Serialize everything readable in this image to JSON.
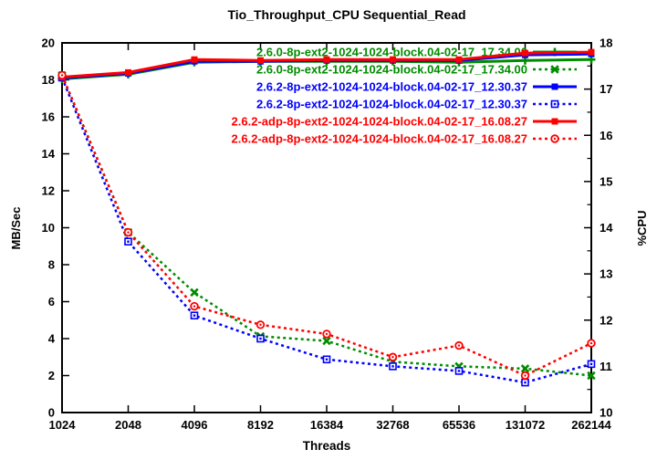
{
  "chart_data": {
    "type": "line",
    "title": "Tio_Throughput_CPU Sequential_Read",
    "xlabel": "Threads",
    "ylabel_left": "MB/Sec",
    "ylabel_right": "%CPU",
    "x_scale": "log2",
    "grid": false,
    "legend_position": "top-right-inside",
    "x_tick_labels": [
      "1024",
      "2048",
      "4096",
      "8192",
      "16384",
      "32768",
      "65536",
      "131072",
      "262144"
    ],
    "left_axis": {
      "min": 0,
      "max": 20,
      "tick_step": 2,
      "tick_labels": [
        "0",
        "2",
        "4",
        "6",
        "8",
        "10",
        "12",
        "14",
        "16",
        "18",
        "20"
      ]
    },
    "right_axis": {
      "min": 10,
      "max": 18,
      "tick_step": 1,
      "minor_tick_step": 0.5,
      "tick_labels": [
        "10",
        "11",
        "12",
        "13",
        "14",
        "15",
        "16",
        "17",
        "18"
      ]
    },
    "series": [
      {
        "label": "2.6.0-8p-ext2-1024-1024-block.04-02-17_17.34.00",
        "axis": "left",
        "unit": "MB/Sec",
        "color": "#008c00",
        "line": "solid",
        "marker": "plus",
        "values": [
          18.05,
          18.3,
          18.95,
          19.0,
          19.0,
          19.0,
          18.95,
          19.05,
          19.1
        ]
      },
      {
        "label": "2.6.0-8p-ext2-1024-1024-block.04-02-17_17.34.00",
        "axis": "right",
        "unit": "%CPU",
        "color": "#008c00",
        "line": "dotted",
        "marker": "x",
        "values": [
          17.3,
          13.9,
          12.6,
          11.65,
          11.55,
          11.1,
          11.0,
          10.95,
          10.8
        ]
      },
      {
        "label": "2.6.2-8p-ext2-1024-1024-block.04-02-17_12.30.37",
        "axis": "left",
        "unit": "MB/Sec",
        "color": "#0000ff",
        "line": "solid",
        "marker": "filled-square",
        "values": [
          18.1,
          18.35,
          19.0,
          19.0,
          19.05,
          19.05,
          19.05,
          19.35,
          19.4
        ]
      },
      {
        "label": "2.6.2-8p-ext2-1024-1024-block.04-02-17_12.30.37",
        "axis": "right",
        "unit": "%CPU",
        "color": "#0000ff",
        "line": "dotted",
        "marker": "open-square",
        "values": [
          17.25,
          13.7,
          12.1,
          11.6,
          11.15,
          11.0,
          10.9,
          10.65,
          11.05
        ]
      },
      {
        "label": "2.6.2-adp-8p-ext2-1024-1024-block.04-02-17_16.08.27",
        "axis": "left",
        "unit": "MB/Sec",
        "color": "#ff0000",
        "line": "solid",
        "marker": "filled-square",
        "values": [
          18.15,
          18.4,
          19.1,
          19.05,
          19.1,
          19.1,
          19.1,
          19.45,
          19.5
        ]
      },
      {
        "label": "2.6.2-adp-8p-ext2-1024-1024-block.04-02-17_16.08.27",
        "axis": "right",
        "unit": "%CPU",
        "color": "#ff0000",
        "line": "dotted",
        "marker": "open-circle",
        "values": [
          17.3,
          13.9,
          12.3,
          11.9,
          11.7,
          11.2,
          11.45,
          10.8,
          11.5
        ]
      }
    ]
  }
}
